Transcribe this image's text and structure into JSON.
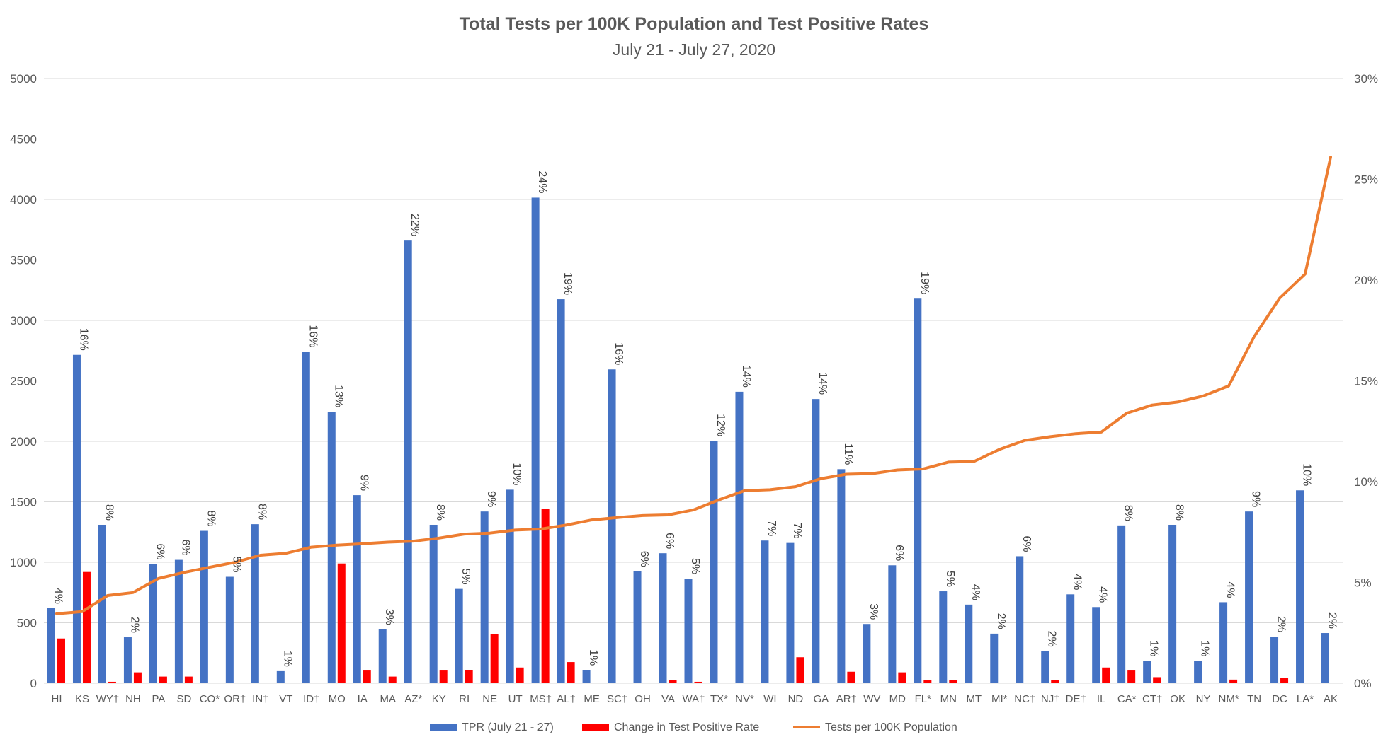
{
  "chart_data": {
    "type": "bar",
    "title": "Total Tests per 100K Population and Test Positive Rates",
    "subtitle": "July 21 - July 27, 2020",
    "left_axis": {
      "ylim": [
        0,
        5000
      ],
      "ticks": [
        "0",
        "500",
        "1000",
        "1500",
        "2000",
        "2500",
        "3000",
        "3500",
        "4000",
        "4500",
        "5000"
      ]
    },
    "right_axis": {
      "ylim": [
        0,
        0.3
      ],
      "ticks": [
        "0%",
        "5%",
        "10%",
        "15%",
        "20%",
        "25%",
        "30%"
      ]
    },
    "grid": true,
    "legend_position": "bottom",
    "categories": [
      "HI",
      "KS",
      "WY†",
      "NH",
      "PA",
      "SD",
      "CO*",
      "OR†",
      "IN†",
      "VT",
      "ID†",
      "MO",
      "IA",
      "MA",
      "AZ*",
      "KY",
      "RI",
      "NE",
      "UT",
      "MS†",
      "AL†",
      "ME",
      "SC†",
      "OH",
      "VA",
      "WA†",
      "TX*",
      "NV*",
      "WI",
      "ND",
      "GA",
      "AR†",
      "WV",
      "MD",
      "FL*",
      "MN",
      "MT",
      "MI*",
      "NC†",
      "NJ†",
      "DE†",
      "IL",
      "CA*",
      "CT†",
      "OK",
      "NY",
      "NM*",
      "TN",
      "DC",
      "LA*",
      "AK"
    ],
    "series": [
      {
        "name": "TPR (July 21 - 27)",
        "type": "bar",
        "axis": "left",
        "color": "#4472c4",
        "values": [
          620,
          2715,
          1310,
          380,
          985,
          1020,
          1260,
          880,
          1315,
          100,
          2740,
          2245,
          1555,
          445,
          3660,
          1310,
          780,
          1420,
          1600,
          4015,
          3175,
          110,
          2595,
          925,
          1075,
          865,
          2005,
          2410,
          1180,
          1160,
          2350,
          1770,
          490,
          975,
          3180,
          760,
          650,
          410,
          1050,
          265,
          735,
          630,
          1305,
          185,
          1310,
          185,
          670,
          1420,
          385,
          1595,
          415
        ],
        "labels": [
          "4%",
          "16%",
          "8%",
          "2%",
          "6%",
          "6%",
          "8%",
          "5%",
          "8%",
          "1%",
          "16%",
          "13%",
          "9%",
          "3%",
          "22%",
          "8%",
          "5%",
          "9%",
          "10%",
          "24%",
          "19%",
          "1%",
          "16%",
          "6%",
          "6%",
          "5%",
          "12%",
          "14%",
          "7%",
          "7%",
          "14%",
          "11%",
          "3%",
          "6%",
          "19%",
          "5%",
          "4%",
          "2%",
          "6%",
          "2%",
          "4%",
          "4%",
          "8%",
          "1%",
          "8%",
          "1%",
          "4%",
          "9%",
          "2%",
          "10%",
          "2%"
        ]
      },
      {
        "name": "Change in Test Positive Rate",
        "type": "bar",
        "axis": "left",
        "color": "#ff0000",
        "values": [
          370,
          920,
          12,
          90,
          55,
          55,
          0,
          0,
          0,
          0,
          0,
          990,
          105,
          55,
          0,
          105,
          110,
          405,
          130,
          1440,
          175,
          0,
          0,
          0,
          25,
          12,
          0,
          0,
          0,
          215,
          0,
          95,
          0,
          90,
          25,
          25,
          5,
          0,
          0,
          25,
          0,
          130,
          105,
          50,
          0,
          0,
          30,
          0,
          45,
          0,
          0
        ]
      },
      {
        "name": "Tests per 100K Population",
        "type": "line",
        "axis": "right",
        "color": "#ed7d31",
        "values": [
          0.0345,
          0.0355,
          0.0435,
          0.045,
          0.052,
          0.055,
          0.0575,
          0.06,
          0.0635,
          0.0645,
          0.0675,
          0.0685,
          0.0692,
          0.07,
          0.0705,
          0.072,
          0.074,
          0.0745,
          0.076,
          0.0765,
          0.0785,
          0.081,
          0.0822,
          0.0832,
          0.0835,
          0.086,
          0.091,
          0.0955,
          0.096,
          0.0975,
          0.1015,
          0.1037,
          0.104,
          0.1058,
          0.1063,
          0.1097,
          0.11,
          0.116,
          0.1205,
          0.1223,
          0.1238,
          0.1246,
          0.134,
          0.138,
          0.1395,
          0.1425,
          0.1475,
          0.172,
          0.191,
          0.203,
          0.261
        ]
      }
    ]
  }
}
